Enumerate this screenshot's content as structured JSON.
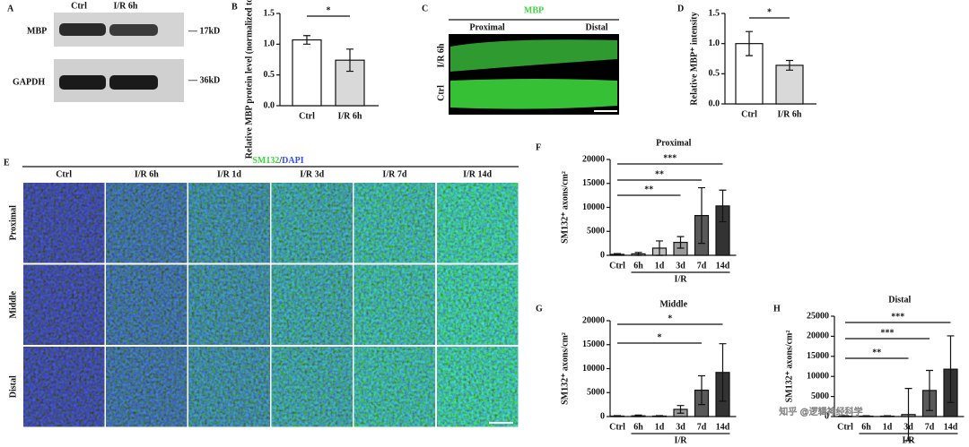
{
  "blot": {
    "panel": "A",
    "lanes": [
      "Ctrl",
      "I/R 6h"
    ],
    "rows": [
      "MBP",
      "GAPDH"
    ],
    "sizes": [
      "— 17kD",
      "— 36kD"
    ]
  },
  "mbp_image": {
    "panel": "C",
    "stain": "MBP",
    "regions": [
      "Proximal",
      "Distal"
    ],
    "rows": [
      "I/R 6h",
      "Ctrl"
    ]
  },
  "stain_grid": {
    "panel": "E",
    "title_parts": [
      "SM132",
      "/",
      "DAPI"
    ],
    "columns": [
      "Ctrl",
      "I/R 6h",
      "I/R 1d",
      "I/R 3d",
      "I/R 7d",
      "I/R 14d"
    ],
    "rows": [
      "Proximal",
      "Middle",
      "Distal"
    ]
  },
  "watermark": "知乎 @逻辑神经科学",
  "chart_data": [
    {
      "type": "bar",
      "panel": "B",
      "ylabel": "Relative MBP protein level (normalized to GAPDH)",
      "categories": [
        "Ctrl",
        "I/R 6h"
      ],
      "values": [
        1.07,
        0.74
      ],
      "errors": [
        0.07,
        0.18
      ],
      "colors": [
        "#ffffff",
        "#d9d9d9"
      ],
      "ylim": [
        0,
        1.5
      ],
      "yticks": [
        {
          "value": 0,
          "label": "0.0"
        },
        0.5,
        {
          "value": 1,
          "label": "1.0"
        },
        1.5
      ],
      "significance": [
        {
          "from": "Ctrl",
          "to": "I/R 6h",
          "label": "*"
        }
      ]
    },
    {
      "type": "bar",
      "panel": "D",
      "ylabel": "Relative MBP⁺ intensity",
      "categories": [
        "Ctrl",
        "I/R 6h"
      ],
      "values": [
        1.0,
        0.64
      ],
      "errors": [
        0.2,
        0.08
      ],
      "colors": [
        "#ffffff",
        "#d9d9d9"
      ],
      "ylim": [
        0,
        1.5
      ],
      "yticks": [
        {
          "value": 0,
          "label": "0.0"
        },
        0.5,
        {
          "value": 1,
          "label": "1.0"
        },
        1.5
      ],
      "significance": [
        {
          "from": "Ctrl",
          "to": "I/R 6h",
          "label": "*"
        }
      ]
    },
    {
      "type": "bar",
      "panel": "F",
      "title": "Proximal",
      "ylabel": "SM132⁺ axons/cm²",
      "group_label": "I/R",
      "categories": [
        "Ctrl",
        "6h",
        "1d",
        "3d",
        "7d",
        "14d"
      ],
      "values": [
        200,
        300,
        1500,
        2700,
        8300,
        10300
      ],
      "errors": [
        150,
        300,
        1500,
        1200,
        5800,
        3300
      ],
      "colors": [
        "#ffffff",
        "#e6e6e6",
        "#bfbfbf",
        "#999999",
        "#595959",
        "#333333"
      ],
      "ylim": [
        0,
        20000
      ],
      "yticks": [
        0,
        5000,
        10000,
        15000,
        20000
      ],
      "significance": [
        {
          "from": "Ctrl",
          "to": "3d",
          "label": "**"
        },
        {
          "from": "Ctrl",
          "to": "7d",
          "label": "**"
        },
        {
          "from": "Ctrl",
          "to": "14d",
          "label": "***"
        }
      ]
    },
    {
      "type": "bar",
      "panel": "G",
      "title": "Middle",
      "ylabel": "SM132⁺ axons/cm²",
      "group_label": "I/R",
      "categories": [
        "Ctrl",
        "6h",
        "1d",
        "3d",
        "7d",
        "14d"
      ],
      "values": [
        100,
        150,
        100,
        1500,
        5500,
        9200
      ],
      "errors": [
        100,
        150,
        100,
        800,
        3000,
        6000
      ],
      "colors": [
        "#ffffff",
        "#e6e6e6",
        "#bfbfbf",
        "#999999",
        "#595959",
        "#333333"
      ],
      "ylim": [
        0,
        20000
      ],
      "yticks": [
        0,
        5000,
        10000,
        15000,
        20000
      ],
      "significance": [
        {
          "from": "Ctrl",
          "to": "7d",
          "label": "*"
        },
        {
          "from": "Ctrl",
          "to": "14d",
          "label": "*"
        }
      ]
    },
    {
      "type": "bar",
      "panel": "H",
      "title": "Distal",
      "ylabel": "SM132⁺ axons/cm²",
      "group_label": "I/R",
      "categories": [
        "Ctrl",
        "6h",
        "1d",
        "3d",
        "7d",
        "14d"
      ],
      "values": [
        100,
        100,
        100,
        500,
        6500,
        11800
      ],
      "errors": [
        100,
        100,
        100,
        6500,
        5000,
        8300
      ],
      "colors": [
        "#ffffff",
        "#e6e6e6",
        "#bfbfbf",
        "#999999",
        "#595959",
        "#333333"
      ],
      "ylim": [
        0,
        25000
      ],
      "yticks": [
        0,
        5000,
        10000,
        15000,
        20000,
        25000
      ],
      "significance": [
        {
          "from": "Ctrl",
          "to": "3d",
          "label": "**"
        },
        {
          "from": "Ctrl",
          "to": "7d",
          "label": "***"
        },
        {
          "from": "Ctrl",
          "to": "14d",
          "label": "***"
        }
      ]
    }
  ]
}
